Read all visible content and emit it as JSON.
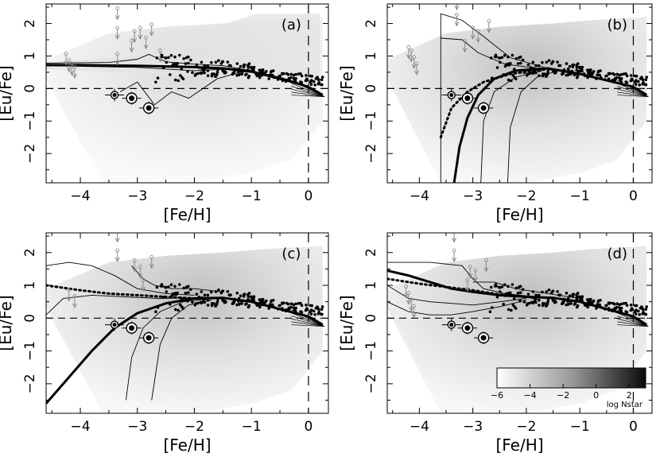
{
  "figure": {
    "colorbar": {
      "ticks": [
        "−6",
        "−4",
        "−2",
        "0",
        "2"
      ],
      "tick_values": [
        -6,
        -4,
        -2,
        0,
        2
      ],
      "range": [
        -6,
        3
      ],
      "label": "log Nstar"
    }
  },
  "chart_data": [
    {
      "panel_label": "(a)",
      "type": "scatter",
      "xlabel": "[Fe/H]",
      "ylabel": "[Eu/Fe]",
      "xlim": [
        -4.6,
        0.35
      ],
      "ylim": [
        -2.9,
        2.6
      ],
      "xticks": [
        "−4",
        "−3",
        "−2",
        "−1",
        "0"
      ],
      "yticks": [
        "2",
        "1",
        "0",
        "−1",
        "−2"
      ],
      "xtick_values": [
        -4,
        -3,
        -2,
        -1,
        0
      ],
      "ytick_values": [
        2,
        1,
        0,
        -1,
        -2
      ],
      "reference_lines": {
        "horizontal_y": 0,
        "vertical_x": 0
      },
      "model_curves": [
        {
          "style": "thick",
          "points": [
            [
              -4.6,
              0.72
            ],
            [
              -4,
              0.72
            ],
            [
              -3,
              0.7
            ],
            [
              -2,
              0.66
            ],
            [
              -1.5,
              0.62
            ],
            [
              -1,
              0.52
            ],
            [
              -0.5,
              0.32
            ],
            [
              0,
              0.05
            ],
            [
              0.25,
              -0.2
            ]
          ]
        },
        {
          "style": "thin",
          "points": [
            [
              -4.6,
              0.78
            ],
            [
              -3.5,
              0.8
            ],
            [
              -3,
              0.9
            ],
            [
              -2.8,
              1.05
            ],
            [
              -2.5,
              0.82
            ],
            [
              -2,
              0.75
            ],
            [
              -1.5,
              0.7
            ],
            [
              -1,
              0.55
            ],
            [
              0,
              0.05
            ]
          ]
        },
        {
          "style": "thin",
          "points": [
            [
              -4.6,
              0.7
            ],
            [
              -3,
              0.65
            ],
            [
              -2,
              0.55
            ],
            [
              -1.4,
              0.6
            ],
            [
              -1,
              0.5
            ],
            [
              0,
              0.05
            ]
          ]
        },
        {
          "style": "thin",
          "points": [
            [
              -3.3,
              -0.1
            ],
            [
              -3,
              0.2
            ],
            [
              -2.7,
              -0.5
            ],
            [
              -2.4,
              -0.1
            ],
            [
              -2.1,
              -0.3
            ],
            [
              -1.6,
              0.3
            ],
            [
              -1.2,
              0.5
            ]
          ]
        }
      ],
      "upper_limits_x": [
        -3.35,
        -3.35,
        -3.35,
        -3.05,
        -2.95,
        -2.85,
        -2.75,
        -4.25,
        -4.2,
        -4.15,
        -4.1,
        -3.1,
        -2.6
      ],
      "upper_limits_y": [
        2.2,
        1.6,
        0.8,
        1.5,
        1.6,
        1.3,
        1.7,
        0.8,
        0.6,
        0.5,
        0.4,
        1.2,
        0.9
      ],
      "highlighted_stars": [
        [
          -3.4,
          -0.2
        ],
        [
          -3.1,
          -0.3
        ],
        [
          -2.8,
          -0.6
        ]
      ]
    },
    {
      "panel_label": "(b)",
      "type": "scatter",
      "xlabel": "[Fe/H]",
      "ylabel": "[Eu/Fe]",
      "xlim": [
        -4.6,
        0.35
      ],
      "ylim": [
        -2.9,
        2.6
      ],
      "xticks": [
        "−4",
        "−3",
        "−2",
        "−1",
        "0"
      ],
      "yticks": [
        "2",
        "1",
        "0",
        "−1",
        "−2"
      ],
      "xtick_values": [
        -4,
        -3,
        -2,
        -1,
        0
      ],
      "ytick_values": [
        2,
        1,
        0,
        -1,
        -2
      ],
      "reference_lines": {
        "horizontal_y": 0,
        "vertical_x": 0
      },
      "model_curves": [
        {
          "style": "thick",
          "points": [
            [
              -3.35,
              -2.9
            ],
            [
              -3.25,
              -1.8
            ],
            [
              -3.1,
              -0.9
            ],
            [
              -2.9,
              -0.2
            ],
            [
              -2.6,
              0.3
            ],
            [
              -2.2,
              0.55
            ],
            [
              -1.6,
              0.62
            ],
            [
              -1,
              0.45
            ],
            [
              -0.5,
              0.25
            ],
            [
              0,
              0.05
            ],
            [
              0.25,
              -0.2
            ]
          ]
        },
        {
          "style": "dotted",
          "points": [
            [
              -3.6,
              -1.5
            ],
            [
              -3.4,
              -0.6
            ],
            [
              -3.1,
              -0.1
            ],
            [
              -2.8,
              0.2
            ],
            [
              -2.3,
              0.45
            ],
            [
              -1.6,
              0.6
            ]
          ]
        },
        {
          "style": "thin",
          "points": [
            [
              -3.6,
              -2.9
            ],
            [
              -3.6,
              2.3
            ],
            [
              -3.2,
              2.1
            ],
            [
              -2.8,
              1.6
            ],
            [
              -2.3,
              0.95
            ],
            [
              -1.6,
              0.62
            ]
          ]
        },
        {
          "style": "thin",
          "points": [
            [
              -3.6,
              1.55
            ],
            [
              -3.2,
              1.5
            ],
            [
              -2.9,
              1.1
            ],
            [
              -2.4,
              0.75
            ],
            [
              -1.7,
              0.6
            ]
          ]
        },
        {
          "style": "thin",
          "points": [
            [
              -2.85,
              -2.9
            ],
            [
              -2.8,
              -1
            ],
            [
              -2.6,
              -0.1
            ],
            [
              -2.2,
              0.35
            ],
            [
              -1.7,
              0.55
            ]
          ]
        },
        {
          "style": "thin",
          "points": [
            [
              -2.35,
              -2.9
            ],
            [
              -2.3,
              -1.2
            ],
            [
              -2.1,
              -0.1
            ],
            [
              -1.8,
              0.35
            ],
            [
              -1.4,
              0.55
            ]
          ]
        }
      ],
      "upper_limits_x": [
        -3.3,
        -3.3,
        -3.0,
        -2.9,
        -2.7,
        -4.2,
        -4.15,
        -4.1,
        -4.05,
        -3.15
      ],
      "upper_limits_y": [
        2.5,
        2.0,
        1.6,
        1.5,
        1.8,
        1.0,
        0.9,
        0.7,
        0.5,
        1.2
      ],
      "highlighted_stars": [
        [
          -3.4,
          -0.2
        ],
        [
          -3.1,
          -0.3
        ],
        [
          -2.8,
          -0.6
        ]
      ]
    },
    {
      "panel_label": "(c)",
      "type": "scatter",
      "xlabel": "[Fe/H]",
      "ylabel": "[Eu/Fe]",
      "xlim": [
        -4.6,
        0.35
      ],
      "ylim": [
        -2.9,
        2.6
      ],
      "xticks": [
        "−4",
        "−3",
        "−2",
        "−1",
        "0"
      ],
      "yticks": [
        "2",
        "1",
        "0",
        "−1",
        "−2"
      ],
      "xtick_values": [
        -4,
        -3,
        -2,
        -1,
        0
      ],
      "ytick_values": [
        2,
        1,
        0,
        -1,
        -2
      ],
      "reference_lines": {
        "horizontal_y": 0,
        "vertical_x": 0
      },
      "model_curves": [
        {
          "style": "thick",
          "points": [
            [
              -4.6,
              -2.6
            ],
            [
              -4.2,
              -1.8
            ],
            [
              -3.8,
              -1
            ],
            [
              -3.4,
              -0.3
            ],
            [
              -3,
              0.15
            ],
            [
              -2.5,
              0.45
            ],
            [
              -2,
              0.6
            ],
            [
              -1.5,
              0.62
            ],
            [
              -1,
              0.5
            ],
            [
              -0.5,
              0.28
            ],
            [
              0,
              0.05
            ],
            [
              0.25,
              -0.2
            ]
          ]
        },
        {
          "style": "dotted",
          "points": [
            [
              -4.6,
              1.0
            ],
            [
              -4,
              0.85
            ],
            [
              -3.5,
              0.75
            ],
            [
              -3,
              0.7
            ],
            [
              -2.5,
              0.65
            ],
            [
              -2,
              0.6
            ]
          ]
        },
        {
          "style": "thin",
          "points": [
            [
              -4.6,
              1.6
            ],
            [
              -4.2,
              1.7
            ],
            [
              -3.8,
              1.6
            ],
            [
              -3.4,
              1.3
            ],
            [
              -3,
              0.9
            ],
            [
              -2.5,
              0.75
            ],
            [
              -2,
              0.7
            ]
          ]
        },
        {
          "style": "thin",
          "points": [
            [
              -4.6,
              0.1
            ],
            [
              -4.3,
              0.6
            ],
            [
              -3.8,
              0.7
            ],
            [
              -3.2,
              0.65
            ],
            [
              -2.6,
              0.6
            ],
            [
              -2,
              0.62
            ]
          ]
        },
        {
          "style": "thin",
          "points": [
            [
              -3.2,
              -2.5
            ],
            [
              -3.1,
              -1.2
            ],
            [
              -2.9,
              -0.3
            ],
            [
              -2.6,
              0.2
            ],
            [
              -2.2,
              0.5
            ],
            [
              -1.7,
              0.6
            ]
          ]
        },
        {
          "style": "thin",
          "points": [
            [
              -2.75,
              -2.5
            ],
            [
              -2.6,
              -0.8
            ],
            [
              -2.4,
              0
            ],
            [
              -2.1,
              0.4
            ],
            [
              -1.7,
              0.55
            ]
          ]
        },
        {
          "style": "thin",
          "points": [
            [
              -3.1,
              1.6
            ],
            [
              -2.9,
              1.2
            ],
            [
              -2.7,
              1.0
            ],
            [
              -2.4,
              0.9
            ],
            [
              -2.0,
              0.9
            ],
            [
              -1.5,
              0.8
            ]
          ]
        }
      ],
      "upper_limits_x": [
        -3.35,
        -3.35,
        -3.05,
        -2.95,
        -2.75,
        -4.2,
        -4.1,
        -2.9
      ],
      "upper_limits_y": [
        2.4,
        1.8,
        1.5,
        1.3,
        1.6,
        0.6,
        0.4,
        0.9
      ],
      "highlighted_stars": [
        [
          -3.4,
          -0.2
        ],
        [
          -3.1,
          -0.3
        ],
        [
          -2.8,
          -0.6
        ]
      ]
    },
    {
      "panel_label": "(d)",
      "type": "scatter",
      "xlabel": "[Fe/H]",
      "ylabel": "[Eu/Fe]",
      "xlim": [
        -4.6,
        0.35
      ],
      "ylim": [
        -2.9,
        2.6
      ],
      "xticks": [
        "−4",
        "−3",
        "−2",
        "−1",
        "0"
      ],
      "yticks": [
        "2",
        "1",
        "0",
        "−1",
        "−2"
      ],
      "xtick_values": [
        -4,
        -3,
        -2,
        -1,
        0
      ],
      "ytick_values": [
        2,
        1,
        0,
        -1,
        -2
      ],
      "reference_lines": {
        "horizontal_y": 0,
        "vertical_x": 0
      },
      "model_curves": [
        {
          "style": "thick",
          "points": [
            [
              -4.6,
              1.45
            ],
            [
              -4.2,
              1.3
            ],
            [
              -3.8,
              1.1
            ],
            [
              -3.4,
              0.9
            ],
            [
              -3,
              0.8
            ],
            [
              -2.5,
              0.7
            ],
            [
              -2,
              0.65
            ],
            [
              -1.5,
              0.62
            ],
            [
              -1,
              0.5
            ],
            [
              -0.5,
              0.28
            ],
            [
              0,
              0.05
            ],
            [
              0.25,
              -0.2
            ]
          ]
        },
        {
          "style": "dotted",
          "points": [
            [
              -4.6,
              1.2
            ],
            [
              -4,
              1.05
            ],
            [
              -3.5,
              0.95
            ],
            [
              -3,
              0.85
            ],
            [
              -2.5,
              0.72
            ],
            [
              -2,
              0.65
            ]
          ]
        },
        {
          "style": "thin",
          "points": [
            [
              -4.6,
              1.7
            ],
            [
              -3.8,
              1.7
            ],
            [
              -3.2,
              1.6
            ],
            [
              -3,
              1.2
            ],
            [
              -2.8,
              0.9
            ],
            [
              -2.4,
              0.75
            ],
            [
              -2,
              0.68
            ]
          ]
        },
        {
          "style": "thin",
          "points": [
            [
              -4.6,
              1.0
            ],
            [
              -4.2,
              0.6
            ],
            [
              -3.8,
              0.5
            ],
            [
              -3.4,
              0.45
            ],
            [
              -3,
              0.4
            ],
            [
              -2.5,
              0.5
            ],
            [
              -2,
              0.6
            ]
          ]
        },
        {
          "style": "thin",
          "points": [
            [
              -4.6,
              0.5
            ],
            [
              -4.2,
              0.2
            ],
            [
              -3.8,
              0.1
            ],
            [
              -3.4,
              0.1
            ],
            [
              -3,
              0.2
            ],
            [
              -2.5,
              0.35
            ],
            [
              -2,
              0.55
            ]
          ]
        },
        {
          "style": "thin",
          "points": [
            [
              -3.0,
              1.1
            ],
            [
              -2.6,
              1.1
            ],
            [
              -2.2,
              0.9
            ],
            [
              -1.8,
              0.8
            ],
            [
              -1.4,
              0.7
            ],
            [
              -1,
              0.6
            ]
          ]
        }
      ],
      "upper_limits_x": [
        -3.35,
        -3.35,
        -3.05,
        -2.95,
        -2.75,
        -4.25,
        -4.2,
        -4.15,
        -4.1,
        -3.1
      ],
      "upper_limits_y": [
        2.4,
        1.8,
        1.3,
        1.2,
        1.5,
        0.7,
        0.5,
        0.3,
        0.1,
        0.9
      ],
      "highlighted_stars": [
        [
          -3.4,
          -0.2
        ],
        [
          -3.1,
          -0.3
        ],
        [
          -2.8,
          -0.6
        ]
      ]
    }
  ]
}
